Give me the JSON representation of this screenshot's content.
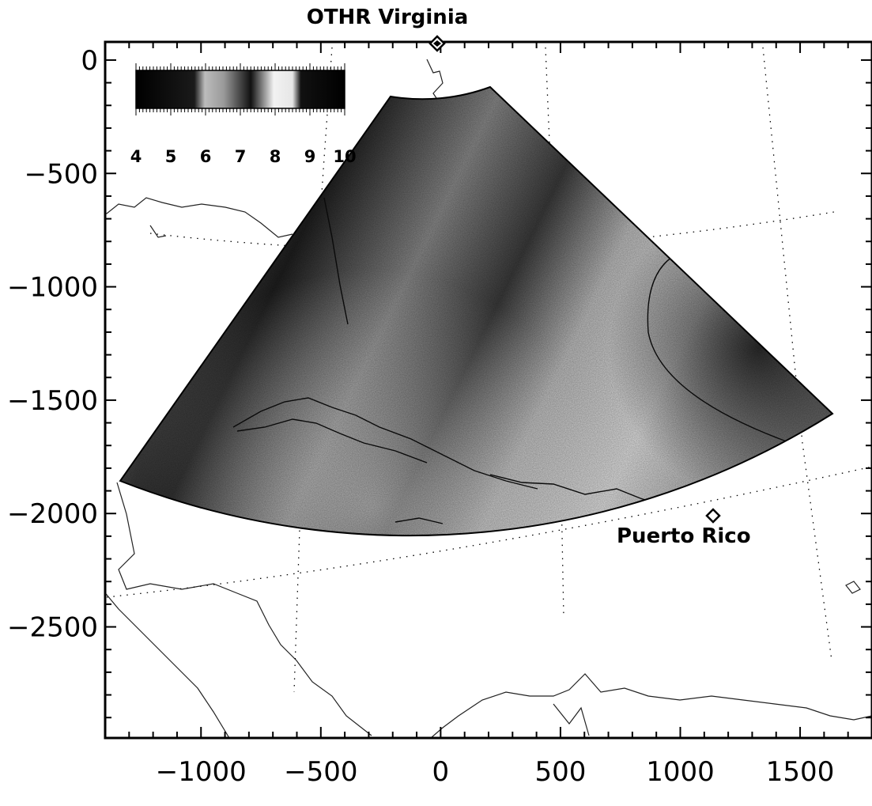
{
  "title": "OTHR Virginia",
  "sites": {
    "transmitter": "OTHR Virginia",
    "receiver": "Puerto Rico"
  },
  "axes": {
    "x": {
      "ticks": [
        -1000,
        -500,
        0,
        500,
        1000,
        1500
      ],
      "range": [
        -1400,
        1800
      ]
    },
    "y": {
      "ticks": [
        0,
        -500,
        -1000,
        -1500,
        -2000,
        -2500
      ],
      "range": [
        -2990,
        80
      ]
    }
  },
  "colorbar": {
    "ticks": [
      "4",
      "5",
      "6",
      "7",
      "8",
      "9",
      "10"
    ],
    "range": [
      4,
      10
    ],
    "scale": "grayscale"
  },
  "colors": {
    "frame": "#000000",
    "coast": "#222222",
    "fan_dark": "#151515",
    "fan_mid": "#7a7a7a",
    "fan_light": "#d6d6d6"
  },
  "icons": {
    "site_marker": "diamond-marker-icon"
  }
}
